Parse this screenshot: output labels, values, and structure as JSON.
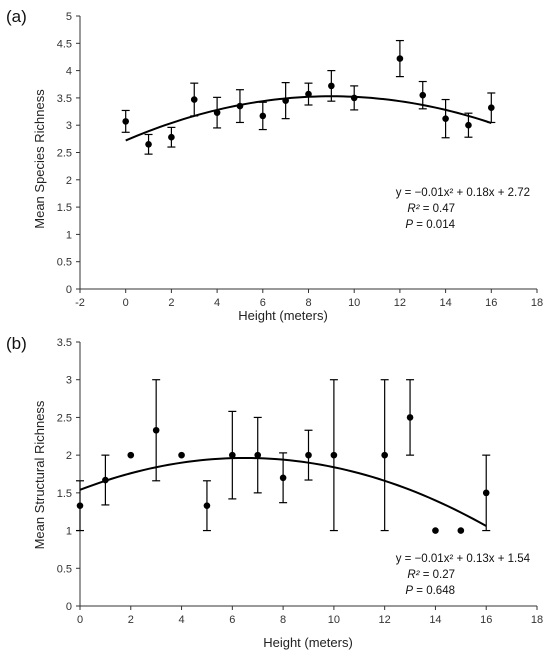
{
  "chart_data": [
    {
      "type": "scatter",
      "panel_label": "(a)",
      "xlabel": "Height (meters)",
      "ylabel": "Mean Species Richness",
      "xlim": [
        -2,
        18
      ],
      "ylim": [
        0,
        5
      ],
      "xticks": [
        -2,
        0,
        2,
        4,
        6,
        8,
        10,
        12,
        14,
        16,
        18
      ],
      "yticks": [
        0,
        0.5,
        1,
        1.5,
        2,
        2.5,
        3,
        3.5,
        4,
        4.5,
        5
      ],
      "x": [
        0,
        1,
        2,
        3,
        4,
        5,
        6,
        7,
        8,
        9,
        10,
        12,
        13,
        14,
        15,
        16
      ],
      "y": [
        3.07,
        2.65,
        2.78,
        3.47,
        3.23,
        3.35,
        3.17,
        3.45,
        3.57,
        3.72,
        3.5,
        4.22,
        3.55,
        3.12,
        3.0,
        3.32
      ],
      "err": [
        0.2,
        0.18,
        0.18,
        0.3,
        0.28,
        0.3,
        0.25,
        0.33,
        0.2,
        0.28,
        0.22,
        0.33,
        0.25,
        0.35,
        0.22,
        0.27
      ],
      "trendline": {
        "a": -0.01,
        "b": 0.18,
        "c": 2.72,
        "x_range": [
          0,
          16
        ]
      },
      "equation_text": "y = −0.01x² + 0.18x + 2.72",
      "r2_label": "R²",
      "r2_value": "= 0.47",
      "p_label": "P",
      "p_value": "= 0.014",
      "grid": false
    },
    {
      "type": "scatter",
      "panel_label": "(b)",
      "xlabel": "Height (meters)",
      "ylabel": "Mean Structural Richness",
      "xlim": [
        0,
        18
      ],
      "ylim": [
        0,
        3.5
      ],
      "xticks": [
        0,
        2,
        4,
        6,
        8,
        10,
        12,
        14,
        16,
        18
      ],
      "yticks": [
        0,
        0.5,
        1,
        1.5,
        2,
        2.5,
        3,
        3.5
      ],
      "x": [
        0,
        1,
        2,
        3,
        4,
        5,
        6,
        7,
        8,
        9,
        10,
        12,
        13,
        14,
        15,
        16
      ],
      "y": [
        1.33,
        1.67,
        2.0,
        2.33,
        2.0,
        1.33,
        2.0,
        2.0,
        1.7,
        2.0,
        2.0,
        2.0,
        2.5,
        1.0,
        1.0,
        1.5
      ],
      "err": [
        0.33,
        0.33,
        0,
        0.67,
        0,
        0.33,
        0.58,
        0.5,
        0.33,
        0.33,
        1.0,
        1.0,
        0.5,
        0,
        0,
        0.5
      ],
      "trendline": {
        "a": -0.01,
        "b": 0.13,
        "c": 1.54,
        "x_range": [
          0,
          16
        ]
      },
      "equation_text": "y = −0.01x² + 0.13x + 1.54",
      "r2_label": "R²",
      "r2_value": "= 0.27",
      "p_label": "P",
      "p_value": "= 0.648",
      "grid": false
    }
  ]
}
